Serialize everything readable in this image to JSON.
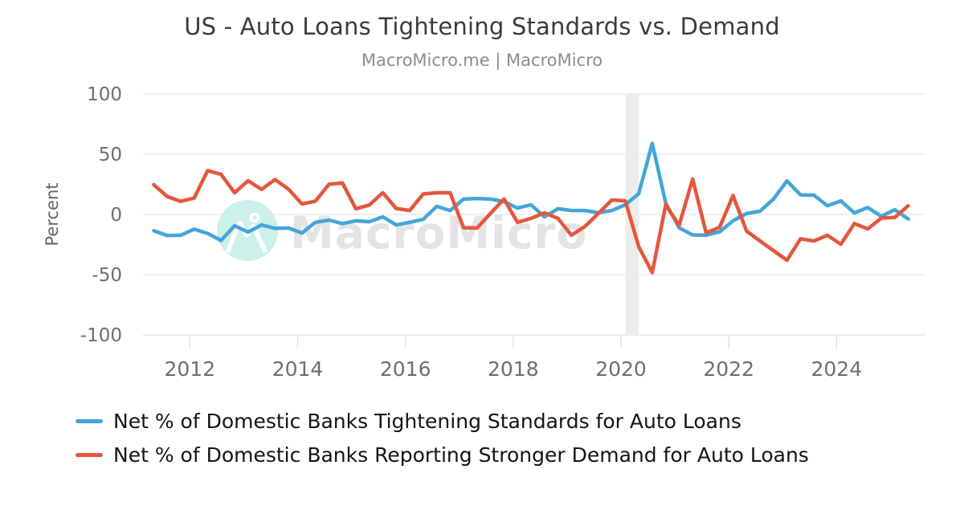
{
  "header": {
    "title": "US - Auto Loans Tightening Standards vs. Demand",
    "subtitle": "MacroMicro.me | MacroMicro"
  },
  "watermark": {
    "text": "MacroMicro"
  },
  "colors": {
    "tightening_line": "#45A5D8",
    "demand_line": "#E4573D",
    "recession_band": "#ebedeb",
    "watermark_circle": "#cbf1e8"
  },
  "legend": {
    "items": [
      {
        "label": "Net % of Domestic Banks Tightening Standards for Auto Loans",
        "color": "#45A5D8"
      },
      {
        "label": "Net % of Domestic Banks Reporting Stronger Demand for Auto Loans",
        "color": "#E4573D"
      }
    ]
  },
  "chart_data": {
    "type": "line",
    "title": "US - Auto Loans Tightening Standards vs. Demand",
    "xlabel": "",
    "ylabel": "Percent",
    "ylim": [
      -100,
      100
    ],
    "grid": true,
    "legend_position": "bottom-left",
    "y_ticks": [
      "100",
      "50",
      "0",
      "-50",
      "-100"
    ],
    "x_ticks": [
      "2012",
      "2014",
      "2016",
      "2018",
      "2020",
      "2022",
      "2024"
    ],
    "recession_band": {
      "from": "2020-02",
      "to": "2020-05"
    },
    "x": [
      "2011Q2",
      "2011Q3",
      "2011Q4",
      "2012Q1",
      "2012Q2",
      "2012Q3",
      "2012Q4",
      "2013Q1",
      "2013Q2",
      "2013Q3",
      "2013Q4",
      "2014Q1",
      "2014Q2",
      "2014Q3",
      "2014Q4",
      "2015Q1",
      "2015Q2",
      "2015Q3",
      "2015Q4",
      "2016Q1",
      "2016Q2",
      "2016Q3",
      "2016Q4",
      "2017Q1",
      "2017Q2",
      "2017Q3",
      "2017Q4",
      "2018Q1",
      "2018Q2",
      "2018Q3",
      "2018Q4",
      "2019Q1",
      "2019Q2",
      "2019Q3",
      "2019Q4",
      "2020Q1",
      "2020Q2",
      "2020Q3",
      "2020Q4",
      "2021Q1",
      "2021Q2",
      "2021Q3",
      "2021Q4",
      "2022Q1",
      "2022Q2",
      "2022Q3",
      "2022Q4",
      "2023Q1",
      "2023Q2",
      "2023Q3",
      "2023Q4",
      "2024Q1",
      "2024Q2",
      "2024Q3",
      "2024Q4",
      "2025Q1",
      "2025Q2"
    ],
    "series": [
      {
        "name": "Net % of Domestic Banks Tightening Standards for Auto Loans",
        "color": "#45A5D8",
        "values": [
          -13.5,
          -17.5,
          -17.3,
          -12.2,
          -15.7,
          -21.6,
          -9.4,
          -14.6,
          -8.7,
          -11.5,
          -11.3,
          -15.4,
          -6.5,
          -4.7,
          -7.5,
          -5.3,
          -6.1,
          -2.0,
          -8.7,
          -6.5,
          -4.1,
          6.7,
          3.3,
          12.7,
          13.3,
          12.7,
          10.7,
          5.3,
          8.0,
          -2.0,
          4.7,
          3.3,
          3.3,
          1.4,
          3.3,
          8.0,
          17.3,
          59.0,
          9.4,
          -11.1,
          -17.0,
          -17.2,
          -14.4,
          -5.3,
          0.7,
          2.7,
          12.7,
          27.9,
          16.3,
          16.0,
          7.3,
          11.3,
          1.3,
          5.7,
          -1.5,
          3.9,
          -3.8
        ]
      },
      {
        "name": "Net % of Domestic Banks Reporting Stronger Demand for Auto Loans",
        "color": "#E4573D",
        "values": [
          24.7,
          14.8,
          10.9,
          13.6,
          36.4,
          33.3,
          18.0,
          28.0,
          20.8,
          29.0,
          21.0,
          8.7,
          11.0,
          25.0,
          26.2,
          4.7,
          7.8,
          18.0,
          4.9,
          3.3,
          17.0,
          18.0,
          18.0,
          -11.0,
          -11.3,
          1.0,
          12.7,
          -6.5,
          -3.3,
          1.3,
          -3.3,
          -17.3,
          -10.0,
          0.7,
          12.0,
          11.3,
          -26.7,
          -48.2,
          8.0,
          -9.0,
          29.4,
          -15.3,
          -10.6,
          15.7,
          -13.8,
          -22.0,
          -30.0,
          -38.0,
          -20.3,
          -22.0,
          -17.3,
          -24.7,
          -7.5,
          -12.0,
          -3.0,
          -2.5,
          7.3
        ]
      }
    ]
  }
}
